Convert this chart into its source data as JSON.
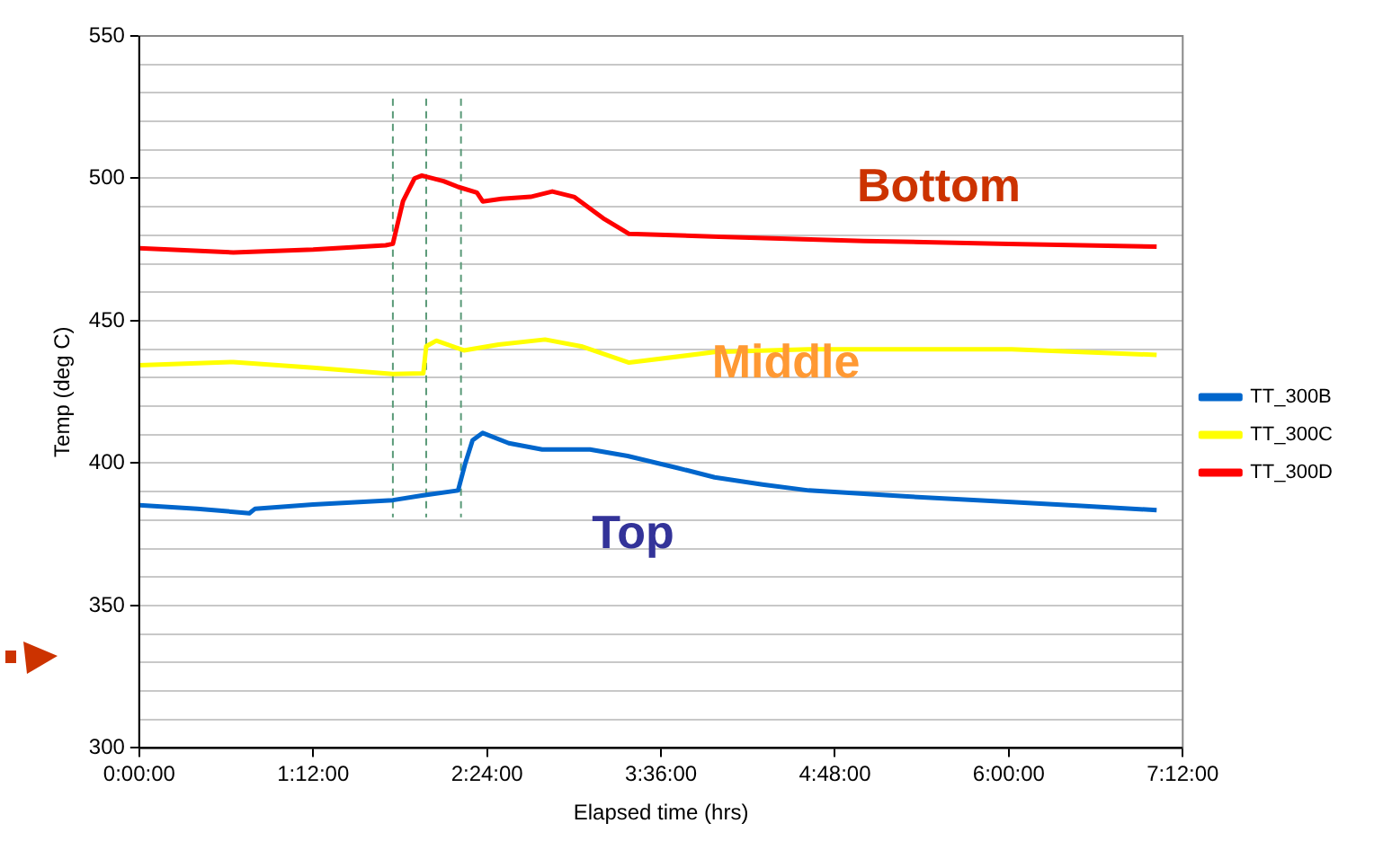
{
  "chart_data": {
    "type": "line",
    "xlabel": "Elapsed time (hrs)",
    "ylabel": "Temp (deg C)",
    "xlim": [
      0,
      7.2
    ],
    "xticks": [
      {
        "value": 0,
        "label": "0:00:00"
      },
      {
        "value": 1.2,
        "label": "1:12:00"
      },
      {
        "value": 2.4,
        "label": "2:24:00"
      },
      {
        "value": 3.6,
        "label": "3:36:00"
      },
      {
        "value": 4.8,
        "label": "4:48:00"
      },
      {
        "value": 6,
        "label": "6:00:00"
      },
      {
        "value": 7.2,
        "label": "7:12:00"
      }
    ],
    "ylim": [
      300,
      550
    ],
    "yticks": [
      300,
      {
        "value": 310,
        "label": null
      },
      {
        "value": 320,
        "label": null
      },
      {
        "value": 330,
        "label": null
      },
      {
        "value": 340,
        "label": null
      },
      350,
      {
        "value": 360,
        "label": null
      },
      {
        "value": 370,
        "label": null
      },
      {
        "value": 380,
        "label": null
      },
      {
        "value": 390,
        "label": null
      },
      400,
      {
        "value": 410,
        "label": null
      },
      {
        "value": 420,
        "label": null
      },
      {
        "value": 430,
        "label": null
      },
      {
        "value": 440,
        "label": null
      },
      450,
      {
        "value": 460,
        "label": null
      },
      {
        "value": 470,
        "label": null
      },
      {
        "value": 480,
        "label": null
      },
      {
        "value": 490,
        "label": null
      },
      500,
      {
        "value": 510,
        "label": null
      },
      {
        "value": 520,
        "label": null
      },
      {
        "value": 530,
        "label": null
      },
      {
        "value": 540,
        "label": null
      },
      550
    ],
    "grid": "y",
    "legend": "right",
    "marker": "none",
    "line_style": "solid",
    "series": [
      {
        "name": "TT_300B",
        "color": "#0066cc",
        "x": [
          0,
          0.4,
          0.76,
          0.8,
          1.2,
          1.75,
          1.95,
          2.2,
          2.25,
          2.3,
          2.37,
          2.55,
          2.78,
          3.11,
          3.37,
          3.7,
          3.97,
          4.3,
          4.62,
          5.3,
          6.02,
          6.5,
          7.02
        ],
        "values": [
          385.2,
          384,
          382.4,
          384,
          385.5,
          387,
          388.6,
          390.4,
          400,
          408,
          410.6,
          407,
          404.8,
          404.8,
          402.5,
          398.5,
          395,
          392.5,
          390.4,
          388.3,
          386.3,
          385,
          383.5
        ]
      },
      {
        "name": "TT_300C",
        "color": "#ffff00",
        "x": [
          0,
          0.65,
          1.2,
          1.75,
          1.96,
          1.98,
          2.05,
          2.24,
          2.48,
          2.8,
          3.05,
          3.38,
          3.97,
          4.62,
          6.02,
          7.02
        ],
        "values": [
          434.4,
          435.5,
          433.5,
          431.3,
          431.5,
          441,
          443,
          439.6,
          441.6,
          443.4,
          441,
          435.3,
          439,
          440,
          440,
          438
        ]
      },
      {
        "name": "TT_300D",
        "color": "#ff0000",
        "x": [
          0,
          0.65,
          1.2,
          1.7,
          1.75,
          1.82,
          1.9,
          1.95,
          2.1,
          2.2,
          2.33,
          2.37,
          2.5,
          2.7,
          2.85,
          3.0,
          3.2,
          3.38,
          4,
          5,
          6,
          7.02
        ],
        "values": [
          475.5,
          474,
          475,
          476.5,
          477,
          492,
          500,
          501,
          499,
          497,
          495,
          491.9,
          492.8,
          493.5,
          495.4,
          493.5,
          486,
          480.5,
          479.5,
          478,
          477,
          476
        ]
      }
    ],
    "ref_lines": [
      {
        "axis": "x",
        "value": 1.75,
        "color": "#5a9a78",
        "line_style": "dashed"
      },
      {
        "axis": "x",
        "value": 1.98,
        "color": "#5a9a78",
        "line_style": "dashed"
      },
      {
        "axis": "x",
        "value": 2.22,
        "color": "#5a9a78",
        "line_style": "dashed"
      }
    ],
    "annotations": [
      "Bottom",
      "Middle",
      "Top"
    ]
  }
}
